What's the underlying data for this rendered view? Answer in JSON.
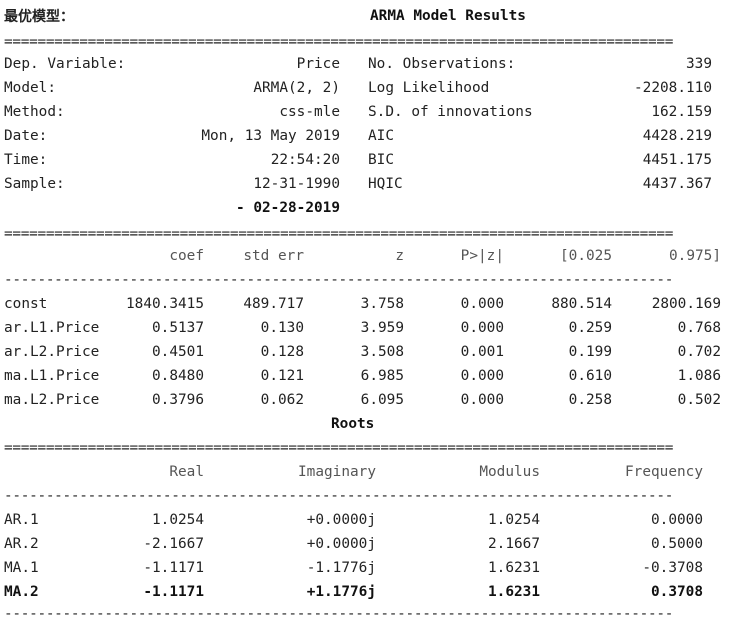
{
  "page_label": "最优模型：",
  "results": {
    "title": "ARMA Model Results",
    "info_left": [
      {
        "label": "Dep. Variable:",
        "value": "Price"
      },
      {
        "label": "Model:",
        "value": "ARMA(2, 2)"
      },
      {
        "label": "Method:",
        "value": "css-mle"
      },
      {
        "label": "Date:",
        "value": "Mon, 13 May 2019"
      },
      {
        "label": "Time:",
        "value": "22:54:20"
      },
      {
        "label": "Sample:",
        "value": "12-31-1990"
      }
    ],
    "sample_end": "- 02-28-2019",
    "info_right": [
      {
        "label": "No. Observations:",
        "value": "339"
      },
      {
        "label": "Log Likelihood",
        "value": "-2208.110"
      },
      {
        "label": "S.D. of innovations",
        "value": "162.159"
      },
      {
        "label": "AIC",
        "value": "4428.219"
      },
      {
        "label": "BIC",
        "value": "4451.175"
      },
      {
        "label": "HQIC",
        "value": "4437.367"
      }
    ],
    "coef_headers": [
      "coef",
      "std err",
      "z",
      "P>|z|",
      "[0.025",
      "0.975]"
    ],
    "coef_rows": [
      {
        "name": "const",
        "vals": [
          "1840.3415",
          "489.717",
          "3.758",
          "0.000",
          "880.514",
          "2800.169"
        ]
      },
      {
        "name": "ar.L1.Price",
        "vals": [
          "0.5137",
          "0.130",
          "3.959",
          "0.000",
          "0.259",
          "0.768"
        ]
      },
      {
        "name": "ar.L2.Price",
        "vals": [
          "0.4501",
          "0.128",
          "3.508",
          "0.001",
          "0.199",
          "0.702"
        ]
      },
      {
        "name": "ma.L1.Price",
        "vals": [
          "0.8480",
          "0.121",
          "6.985",
          "0.000",
          "0.610",
          "1.086"
        ]
      },
      {
        "name": "ma.L2.Price",
        "vals": [
          "0.3796",
          "0.062",
          "6.095",
          "0.000",
          "0.258",
          "0.502"
        ]
      }
    ]
  },
  "roots": {
    "title": "Roots",
    "headers": [
      "Real",
      "Imaginary",
      "Modulus",
      "Frequency"
    ],
    "rows": [
      {
        "name": "AR.1",
        "vals": [
          "1.0254",
          "+0.0000j",
          "1.0254",
          "0.0000"
        ]
      },
      {
        "name": "AR.2",
        "vals": [
          "-2.1667",
          "+0.0000j",
          "2.1667",
          "0.5000"
        ]
      },
      {
        "name": "MA.1",
        "vals": [
          "-1.1171",
          "-1.1776j",
          "1.6231",
          "-0.3708"
        ]
      },
      {
        "name": "MA.2",
        "vals": [
          "-1.1171",
          "+1.1776j",
          "1.6231",
          "0.3708"
        ]
      }
    ]
  }
}
